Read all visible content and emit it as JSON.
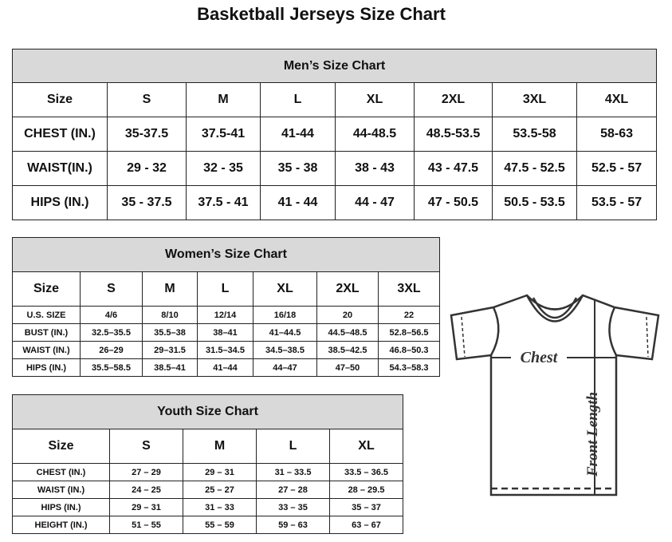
{
  "title": "Basketball Jerseys Size Chart",
  "men": {
    "title": "Men’s Size Chart",
    "rows": [
      [
        "Size",
        "S",
        "M",
        "L",
        "XL",
        "2XL",
        "3XL",
        "4XL"
      ],
      [
        "CHEST (IN.)",
        "35-37.5",
        "37.5-41",
        "41-44",
        "44-48.5",
        "48.5-53.5",
        "53.5-58",
        "58-63"
      ],
      [
        "WAIST(IN.)",
        "29 - 32",
        "32 - 35",
        "35 - 38",
        "38 - 43",
        "43 - 47.5",
        "47.5 - 52.5",
        "52.5 - 57"
      ],
      [
        "HIPS (IN.)",
        "35 - 37.5",
        "37.5 - 41",
        "41 - 44",
        "44 - 47",
        "47 - 50.5",
        "50.5 - 53.5",
        "53.5 - 57"
      ]
    ]
  },
  "women": {
    "title": "Women’s Size Chart",
    "rows": [
      [
        "Size",
        "S",
        "M",
        "L",
        "XL",
        "2XL",
        "3XL"
      ],
      [
        "U.S.  SIZE",
        "4/6",
        "8/10",
        "12/14",
        "16/18",
        "20",
        "22"
      ],
      [
        "BUST  (IN.)",
        "32.5–35.5",
        "35.5–38",
        "38–41",
        "41–44.5",
        "44.5–48.5",
        "52.8–56.5"
      ],
      [
        "WAIST  (IN.)",
        "26–29",
        "29–31.5",
        "31.5–34.5",
        "34.5–38.5",
        "38.5–42.5",
        "46.8–50.3"
      ],
      [
        "HIPS  (IN.)",
        "35.5–58.5",
        "38.5–41",
        "41–44",
        "44–47",
        "47–50",
        "54.3–58.3"
      ]
    ]
  },
  "youth": {
    "title": "Youth Size Chart",
    "rows": [
      [
        "Size",
        "S",
        "M",
        "L",
        "XL"
      ],
      [
        "CHEST  (IN.)",
        "27  –  29",
        "29  –  31",
        "31  –  33.5",
        "33.5  –  36.5"
      ],
      [
        "WAIST  (IN.)",
        "24  –  25",
        "25  –  27",
        "27  –  28",
        "28  –  29.5"
      ],
      [
        "HIPS  (IN.)",
        "29  –  31",
        "31  –  33",
        "33  –  35",
        "35  –  37"
      ],
      [
        "HEIGHT  (IN.)",
        "51  –  55",
        "55  –  59",
        "59  –  63",
        "63  –  67"
      ]
    ]
  },
  "diagram": {
    "chest_label": "Chest",
    "length_label": "Front Length"
  }
}
